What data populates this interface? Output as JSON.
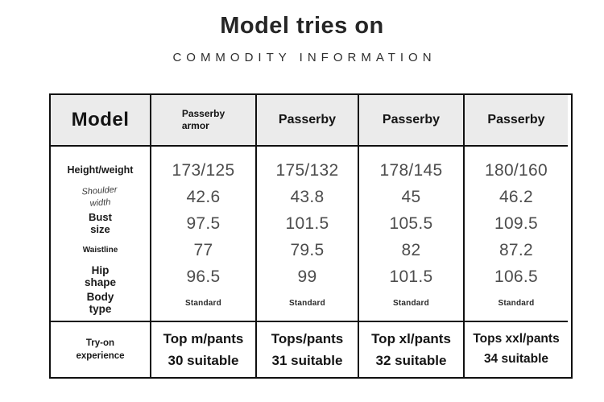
{
  "title": "Model tries on",
  "subtitle": "COMMODITY INFORMATION",
  "colors": {
    "border": "#101010",
    "header_background": "#ebebeb",
    "label_text": "#1a1a1a",
    "value_text": "#4d4d4d"
  },
  "table": {
    "header": [
      "Model",
      "Passerby\narmor",
      "Passerby",
      "Passerby",
      "Passerby"
    ],
    "rows": [
      {
        "label": "Height/weight",
        "values": [
          "173/125",
          "175/132",
          "178/145",
          "180/160"
        ]
      },
      {
        "label": "Shoulder\nwidth",
        "values": [
          "42.6",
          "43.8",
          "45",
          "46.2"
        ]
      },
      {
        "label": "Bust\nsize",
        "values": [
          "97.5",
          "101.5",
          "105.5",
          "109.5"
        ]
      },
      {
        "label": "Waistline",
        "values": [
          "77",
          "79.5",
          "82",
          "87.2"
        ]
      },
      {
        "label": "Hip\nshape",
        "values": [
          "96.5",
          "99",
          "101.5",
          "106.5"
        ]
      },
      {
        "label": "Body\ntype",
        "values": [
          "Standard",
          "Standard",
          "Standard",
          "Standard"
        ]
      }
    ],
    "tryon": {
      "label": "Try-on\nexperience",
      "values": [
        "Top m/pants\n30 suitable",
        "Tops/pants\n31 suitable",
        "Top xl/pants\n32 suitable",
        "Tops xxl/pants\n34 suitable"
      ]
    }
  }
}
